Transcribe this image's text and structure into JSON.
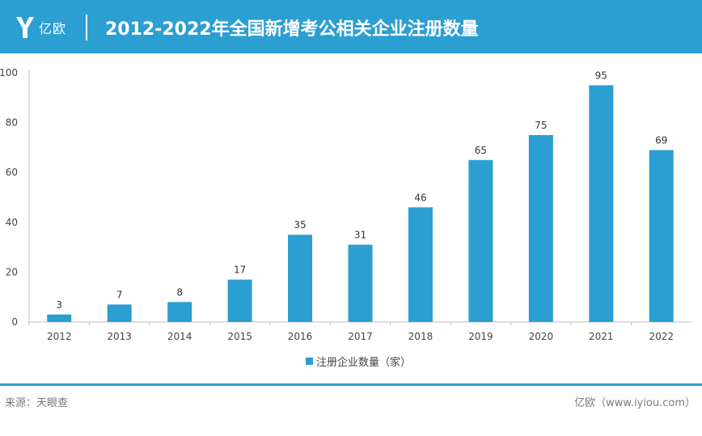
{
  "header": {
    "logo_text": "亿欧",
    "title": "2012-2022年全国新增考公相关企业注册数量"
  },
  "colors": {
    "accent": "#2b9fd1",
    "bar": "#2b9fd1"
  },
  "chart_data": {
    "type": "bar",
    "title": "2012-2022年全国新增考公相关企业注册数量",
    "categories": [
      "2012",
      "2013",
      "2014",
      "2015",
      "2016",
      "2017",
      "2018",
      "2019",
      "2020",
      "2021",
      "2022"
    ],
    "series": [
      {
        "name": "注册企业数量（家）",
        "values": [
          3,
          7,
          8,
          17,
          35,
          31,
          46,
          65,
          75,
          95,
          69
        ]
      }
    ],
    "yticks": [
      "0",
      "20",
      "40",
      "60",
      "80",
      "100"
    ],
    "ylim": [
      0,
      100
    ],
    "xlabel": "",
    "ylabel": "",
    "grid": false,
    "legend_position": "bottom"
  },
  "footer": {
    "source": "来源：天眼查",
    "credit": "亿欧（www.iyiou.com）"
  }
}
